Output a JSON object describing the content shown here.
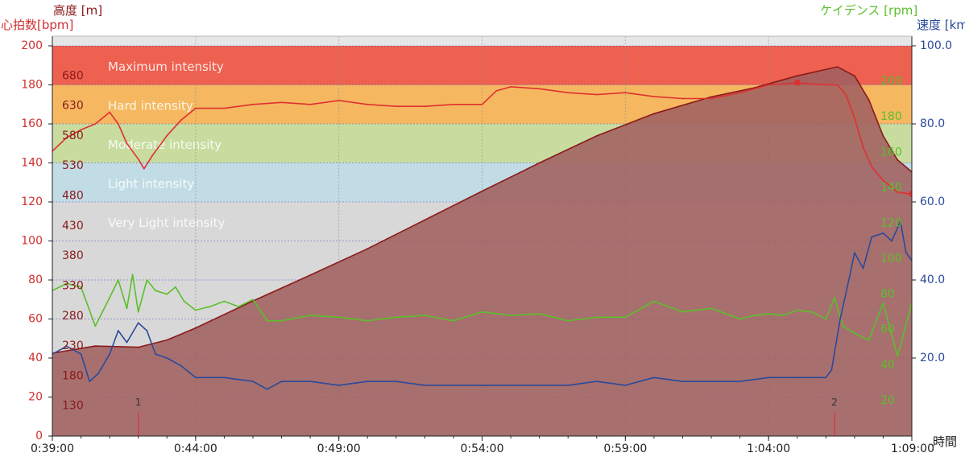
{
  "chart_data": {
    "type": "line",
    "axes": {
      "heart_rate": {
        "title": "心拍数[bpm]",
        "range": [
          0,
          200
        ],
        "ticks": [
          0,
          20,
          40,
          60,
          80,
          100,
          120,
          140,
          160,
          180,
          200
        ],
        "color": "#d03030"
      },
      "altitude": {
        "title": "高度 [m]",
        "range": [
          80,
          730
        ],
        "ticks": [
          130,
          180,
          230,
          280,
          330,
          380,
          430,
          480,
          530,
          580,
          630,
          680
        ],
        "color": "#8b1a1a"
      },
      "cadence": {
        "title": "ケイデンス [rpm]",
        "range": [
          0,
          220
        ],
        "ticks": [
          20,
          40,
          60,
          80,
          100,
          120,
          140,
          160,
          180,
          200
        ],
        "color": "#5abf2a"
      },
      "speed": {
        "title": "速度 [km/h]",
        "range": [
          0,
          100
        ],
        "ticks": [
          "20.0",
          "40.0",
          "60.0",
          "80.0",
          "100.0"
        ],
        "color": "#2a4a9a"
      },
      "time": {
        "title": "時間",
        "range": [
          "0:39:00",
          "1:09:00"
        ],
        "ticks": [
          "0:39:00",
          "0:44:00",
          "0:49:00",
          "0:54:00",
          "0:59:00",
          "1:04:00",
          "1:09:00"
        ]
      }
    },
    "zones": [
      {
        "label": "Maximum intensity",
        "hr_from": 180,
        "hr_to": 200,
        "color": "#ee6050"
      },
      {
        "label": "Hard intensity",
        "hr_from": 160,
        "hr_to": 180,
        "color": "#f5b860"
      },
      {
        "label": "Moderate intensity",
        "hr_from": 140,
        "hr_to": 160,
        "color": "#c8dca0"
      },
      {
        "label": "Light intensity",
        "hr_from": 120,
        "hr_to": 140,
        "color": "#c2dce6"
      },
      {
        "label": "Very Light intensity",
        "hr_from": 0,
        "hr_to": 120,
        "color": "#d8d8d8"
      }
    ],
    "markers": [
      {
        "label": "1",
        "time_min": 42.0
      },
      {
        "label": "2",
        "time_min": 66.3
      }
    ],
    "series": [
      {
        "key": "altitude",
        "type": "area",
        "color": "#8b1a1a",
        "fill": "#a06060",
        "x_min": [
          39.0,
          40.5,
          42.0,
          43.0,
          44.0,
          46.0,
          48.0,
          50.0,
          52.0,
          54.0,
          56.0,
          58.0,
          60.0,
          62.0,
          63.5,
          65.0,
          66.4,
          67.0,
          67.5,
          68.0,
          68.5,
          69.0
        ],
        "values": [
          218,
          230,
          228,
          240,
          260,
          305,
          348,
          392,
          440,
          488,
          535,
          580,
          617,
          645,
          660,
          680,
          695,
          680,
          640,
          580,
          540,
          520
        ]
      },
      {
        "key": "heart_rate",
        "type": "line",
        "color": "#e03030",
        "x_min": [
          39.0,
          39.5,
          40.0,
          40.5,
          41.0,
          41.3,
          41.6,
          42.0,
          42.2,
          42.5,
          43.0,
          43.5,
          44.0,
          45.0,
          46.0,
          47.0,
          48.0,
          49.0,
          50.0,
          51.0,
          52.0,
          53.0,
          54.0,
          54.5,
          55.0,
          56.0,
          57.0,
          58.0,
          59.0,
          60.0,
          61.0,
          62.0,
          63.0,
          64.0,
          65.0,
          66.0,
          66.4,
          66.7,
          67.0,
          67.3,
          67.6,
          68.0,
          68.5,
          69.0
        ],
        "values": [
          146,
          153,
          157,
          160,
          166,
          160,
          150,
          142,
          137,
          144,
          154,
          162,
          168,
          168,
          170,
          171,
          170,
          172,
          170,
          169,
          169,
          170,
          170,
          177,
          179,
          178,
          176,
          175,
          176,
          174,
          173,
          173,
          176,
          180,
          181,
          180,
          180,
          175,
          163,
          148,
          138,
          131,
          125,
          124
        ]
      },
      {
        "key": "cadence",
        "type": "line",
        "color": "#5abf2a",
        "x_min": [
          39.0,
          39.5,
          40.0,
          40.5,
          41.0,
          41.3,
          41.6,
          41.8,
          42.0,
          42.3,
          42.6,
          43.0,
          43.3,
          43.6,
          44.0,
          44.5,
          45.0,
          45.5,
          46.0,
          46.5,
          47.0,
          48.0,
          49.0,
          50.0,
          51.0,
          52.0,
          53.0,
          54.0,
          55.0,
          56.0,
          57.0,
          58.0,
          59.0,
          60.0,
          61.0,
          62.0,
          63.0,
          63.5,
          64.0,
          64.5,
          65.0,
          65.5,
          66.0,
          66.3,
          66.6,
          67.0,
          67.5,
          68.0,
          68.5,
          69.0
        ],
        "values": [
          82,
          86,
          84,
          62,
          78,
          88,
          72,
          91,
          70,
          88,
          82,
          80,
          84,
          76,
          71,
          73,
          76,
          73,
          77,
          65,
          65,
          68,
          67,
          65,
          67,
          68,
          65,
          70,
          68,
          69,
          65,
          67,
          67,
          76,
          70,
          72,
          66,
          68,
          69,
          68,
          71,
          70,
          66,
          78,
          62,
          58,
          54,
          75,
          45,
          75
        ]
      },
      {
        "key": "speed",
        "type": "line",
        "color": "#2a4a9a",
        "x_min": [
          39.0,
          39.5,
          40.0,
          40.3,
          40.6,
          41.0,
          41.3,
          41.6,
          42.0,
          42.3,
          42.6,
          43.0,
          43.5,
          44.0,
          45.0,
          46.0,
          46.5,
          47.0,
          48.0,
          49.0,
          50.0,
          51.0,
          52.0,
          53.0,
          54.0,
          55.0,
          56.0,
          57.0,
          58.0,
          59.0,
          60.0,
          61.0,
          62.0,
          63.0,
          64.0,
          65.0,
          66.0,
          66.2,
          66.5,
          66.8,
          67.0,
          67.3,
          67.6,
          68.0,
          68.3,
          68.6,
          68.8,
          69.0
        ],
        "values": [
          21,
          23,
          21,
          14,
          16,
          21,
          27,
          24,
          29,
          27,
          21,
          20,
          18,
          15,
          15,
          14,
          12,
          14,
          14,
          13,
          14,
          14,
          13,
          13,
          13,
          13,
          13,
          13,
          14,
          13,
          15,
          14,
          14,
          14,
          15,
          15,
          15,
          17,
          30,
          40,
          47,
          43,
          51,
          52,
          50,
          55,
          47,
          45
        ]
      }
    ]
  }
}
